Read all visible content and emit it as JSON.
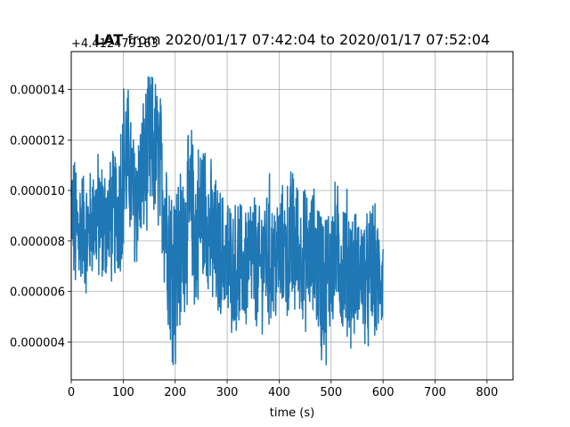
{
  "chart_data": {
    "type": "line",
    "title_bold": "LAT",
    "title_rest": " from 2020/01/17 07:42:04 to 2020/01/17 07:52:04",
    "offset_label": "+4.412479163",
    "xlabel": "time (s)",
    "ylabel": "",
    "xlim": [
      0,
      850
    ],
    "ylim": [
      2.5e-06,
      1.55e-05
    ],
    "x_ticks": [
      0,
      100,
      200,
      300,
      400,
      500,
      600,
      700,
      800
    ],
    "y_ticks": [
      4e-06,
      6e-06,
      8e-06,
      1e-05,
      1.2e-05,
      1.4e-05
    ],
    "y_tick_labels": [
      "0.000004",
      "0.000006",
      "0.000008",
      "0.000010",
      "0.000012",
      "0.000014"
    ],
    "grid": true,
    "color": "#1f77b4",
    "series": [
      {
        "x": [
          0,
          10,
          20,
          30,
          40,
          50,
          60,
          70,
          80,
          90,
          100,
          110,
          120,
          130,
          140,
          150,
          160,
          170,
          180,
          190,
          200,
          210,
          220,
          230,
          240,
          250,
          260,
          270,
          280,
          290,
          300,
          310,
          320,
          330,
          340,
          350,
          360,
          370,
          380,
          390,
          400,
          410,
          420,
          430,
          440,
          450,
          460,
          470,
          480,
          490,
          500,
          510,
          520,
          530,
          540,
          550,
          560,
          570,
          580,
          590,
          600
        ],
        "y_mid": [
          9.3e-06,
          8.2e-06,
          8.7e-06,
          8.1e-06,
          8.8e-06,
          9e-06,
          8.6e-06,
          8.8e-06,
          8.9e-06,
          9.2e-06,
          1.1e-05,
          1.13e-05,
          9.7e-06,
          9.9e-06,
          1.09e-05,
          1.17e-05,
          1.15e-05,
          1.12e-05,
          9.4e-06,
          7.5e-06,
          6.8e-06,
          7.5e-06,
          8.5e-06,
          9.3e-06,
          8.2e-06,
          9.1e-06,
          9.2e-06,
          8.1e-06,
          7.5e-06,
          7.6e-06,
          7.2e-06,
          6.8e-06,
          7.2e-06,
          6.9e-06,
          7.1e-06,
          7.4e-06,
          6.8e-06,
          7.3e-06,
          7.6e-06,
          7.1e-06,
          7.4e-06,
          7.6e-06,
          7.7e-06,
          7.9e-06,
          7.5e-06,
          7.3e-06,
          7.4e-06,
          7.6e-06,
          6.4e-06,
          6.3e-06,
          7.2e-06,
          7.6e-06,
          7.1e-06,
          7.2e-06,
          6.6e-06,
          6.7e-06,
          6.8e-06,
          6.3e-06,
          6.9e-06,
          6.4e-06,
          6.5e-06
        ],
        "y_amp": [
          2.2e-06,
          2.6e-06,
          2.1e-06,
          2.1e-06,
          2e-06,
          2.3e-06,
          2.3e-06,
          2e-06,
          2.4e-06,
          2.5e-06,
          3.1e-06,
          2.5e-06,
          2.4e-06,
          2.6e-06,
          2.6e-06,
          2.8e-06,
          2.8e-06,
          2.5e-06,
          3e-06,
          3.4e-06,
          3.4e-06,
          3.1e-06,
          2.6e-06,
          3e-06,
          3e-06,
          3e-06,
          2.6e-06,
          2.6e-06,
          2.6e-06,
          2.1e-06,
          2.7e-06,
          2.1e-06,
          2.4e-06,
          2.2e-06,
          2.4e-06,
          2.5e-06,
          2.1e-06,
          2.4e-06,
          2.8e-06,
          2.4e-06,
          2.2e-06,
          2.4e-06,
          2.6e-06,
          3e-06,
          2.1e-06,
          2.5e-06,
          2.2e-06,
          2.4e-06,
          2.9e-06,
          2.8e-06,
          2.5e-06,
          2.5e-06,
          2.4e-06,
          2.6e-06,
          2.4e-06,
          2.2e-06,
          2.3e-06,
          2.4e-06,
          2.6e-06,
          2.1e-06,
          1.9e-06
        ]
      }
    ]
  }
}
